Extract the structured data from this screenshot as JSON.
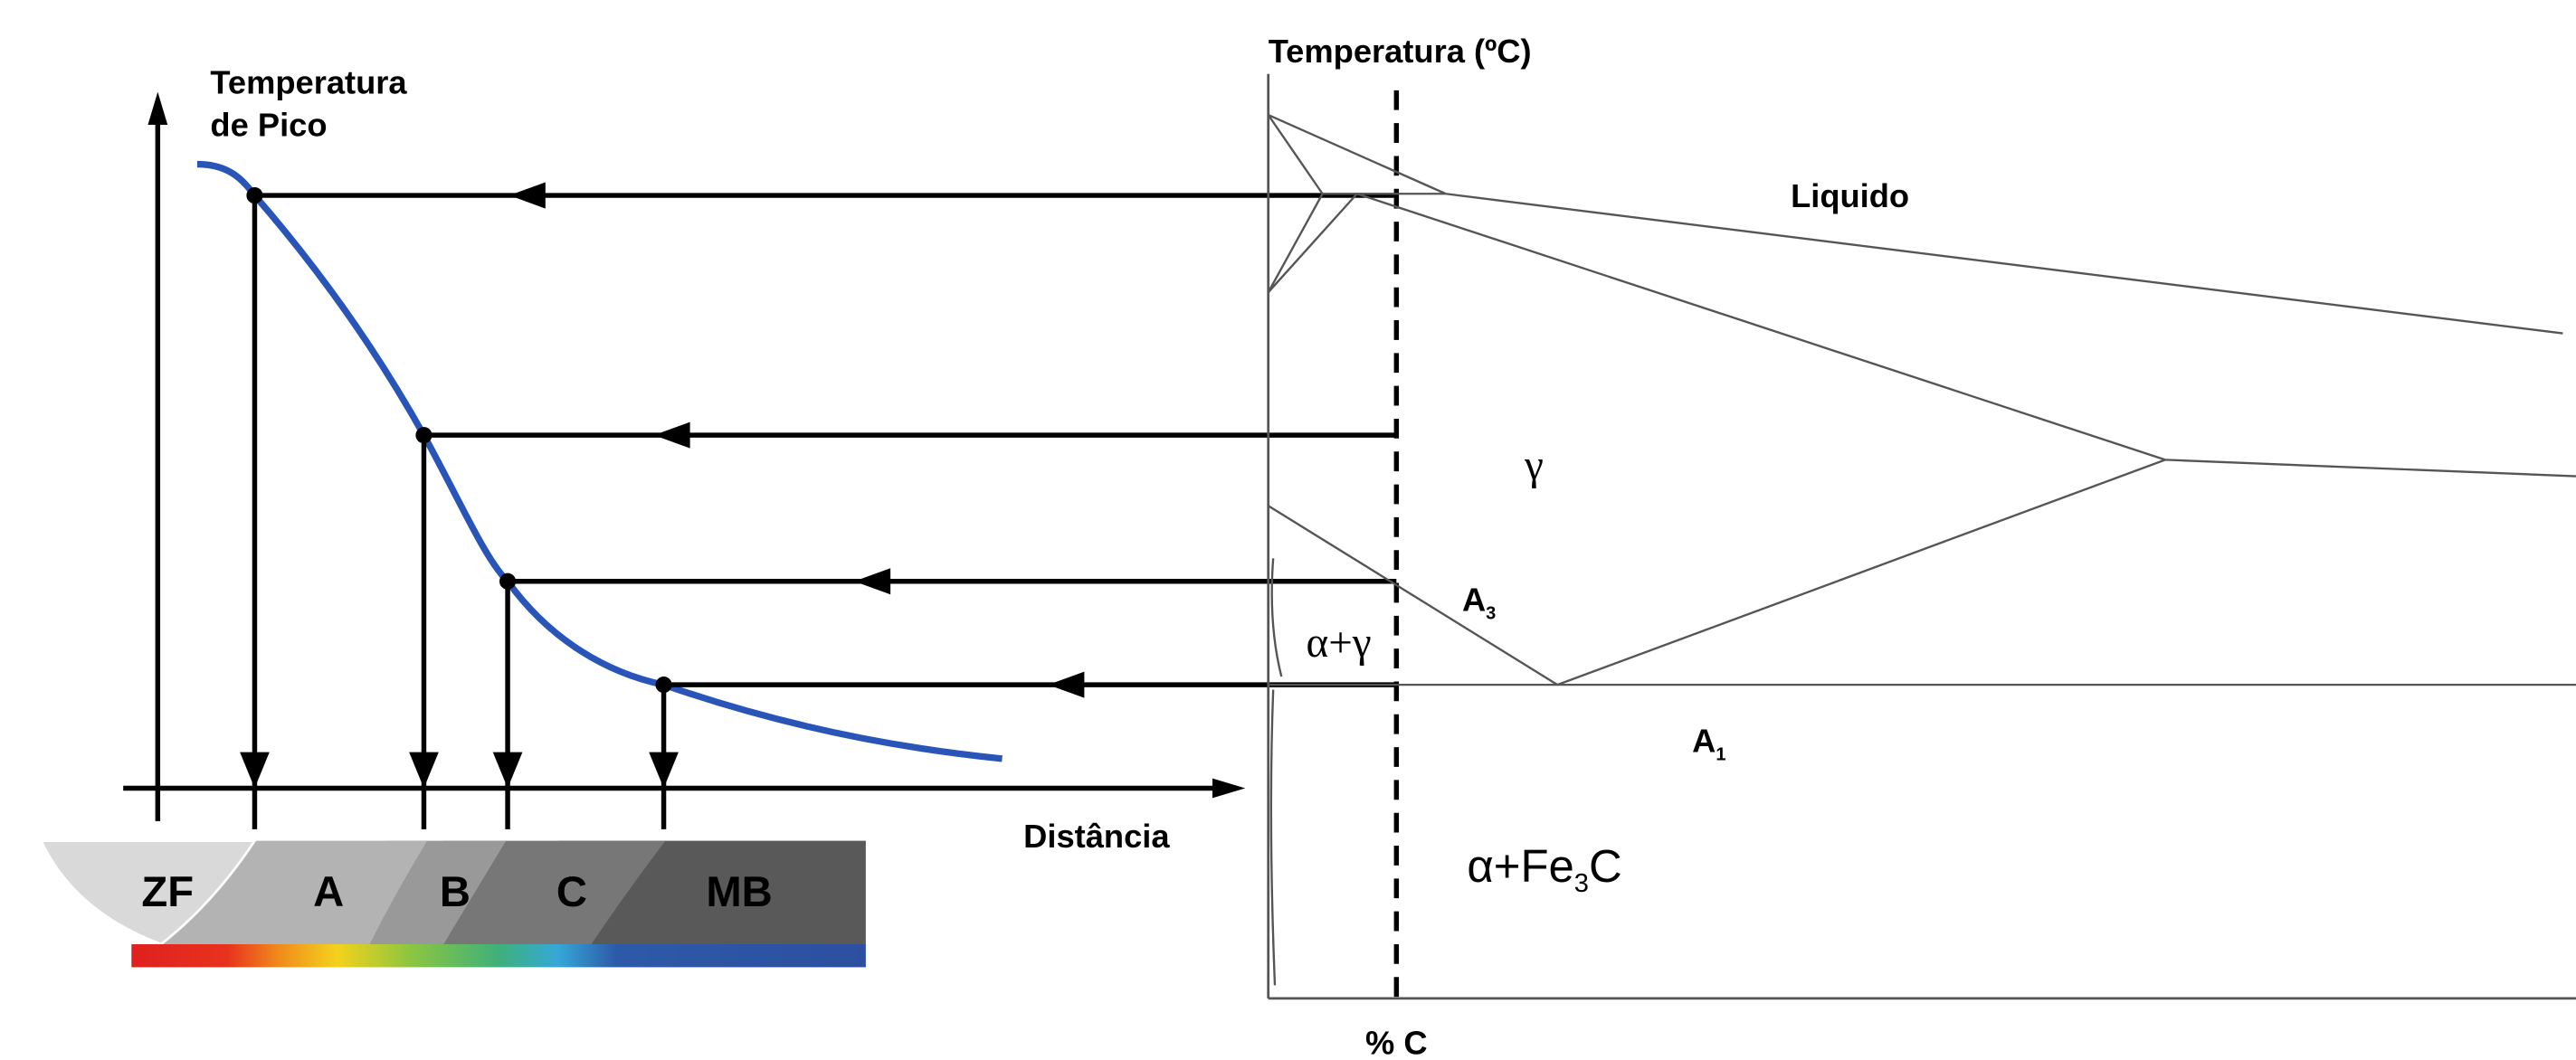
{
  "left": {
    "y_label_lines": [
      "Temperatura",
      "de Pico"
    ],
    "x_label": "Distância",
    "zones": [
      "ZF",
      "A",
      "B",
      "C",
      "MB"
    ]
  },
  "right": {
    "y_label": "Temperatura (ºC)",
    "x_label": "% C",
    "liquid": "Liquido",
    "gamma": "γ",
    "alpha_gamma": "α+γ",
    "a3": {
      "main": "A",
      "sub": "3"
    },
    "a1": {
      "main": "A",
      "sub": "1"
    },
    "alpha_fe3c": {
      "main": "α+Fe",
      "sub": "3",
      "end": "C"
    }
  }
}
